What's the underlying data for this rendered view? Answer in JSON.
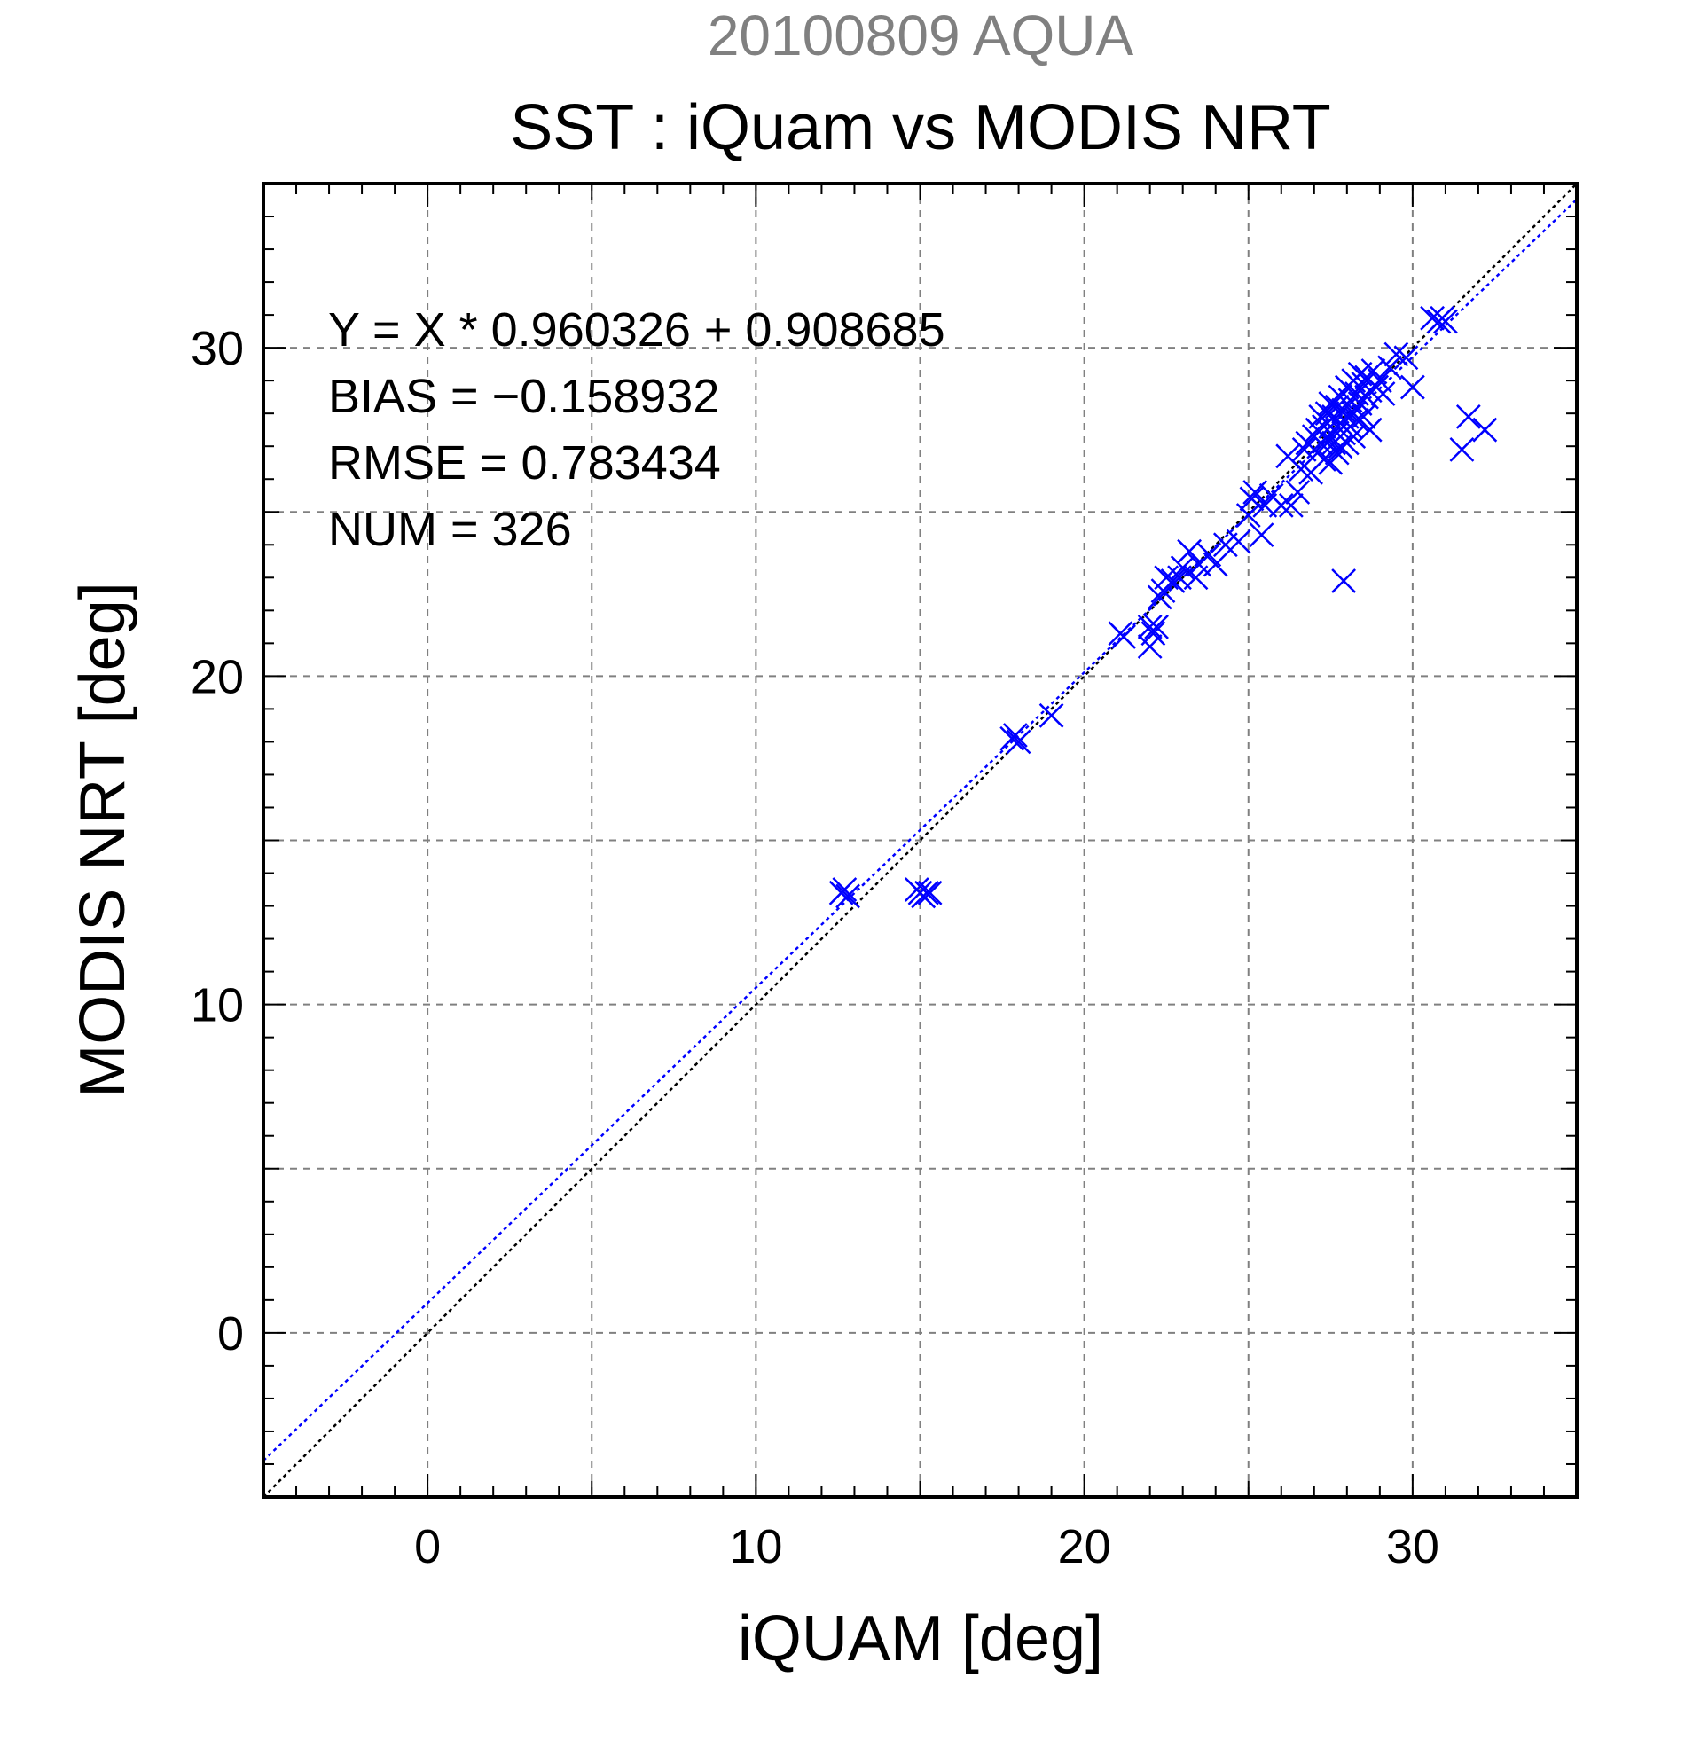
{
  "chart_data": {
    "type": "scatter",
    "suptitle": "20100809 AQUA",
    "title": "SST : iQuam vs MODIS NRT",
    "xlabel": "iQUAM [deg]",
    "ylabel": "MODIS NRT [deg]",
    "xlim": [
      -5,
      35
    ],
    "ylim": [
      -5,
      35
    ],
    "xticks": [
      0,
      10,
      20,
      30
    ],
    "yticks": [
      0,
      10,
      20,
      30
    ],
    "xtick_labels": [
      "0",
      "10",
      "20",
      "30"
    ],
    "ytick_labels": [
      "0",
      "10",
      "20",
      "30"
    ],
    "grid": true,
    "stats": {
      "fit_line": "Y = X * 0.960326 + 0.908685",
      "bias": "BIAS = −0.158932",
      "rmse": "RMSE = 0.783434",
      "num": "NUM = 326"
    },
    "fit": {
      "slope": 0.960326,
      "intercept": 0.908685
    },
    "colors": {
      "points": "#0000ff",
      "fit_line": "#0000ff",
      "identity_line": "#000000",
      "suptitle": "#808080",
      "grid": "#808080"
    },
    "series": [
      {
        "marker": "x",
        "points": [
          [
            12.6,
            13.4
          ],
          [
            12.8,
            13.3
          ],
          [
            12.7,
            13.5
          ],
          [
            15.0,
            13.4
          ],
          [
            15.2,
            13.4
          ],
          [
            15.1,
            13.3
          ],
          [
            15.3,
            13.4
          ],
          [
            14.9,
            13.5
          ],
          [
            17.8,
            18.1
          ],
          [
            18.0,
            18.0
          ],
          [
            17.9,
            18.2
          ],
          [
            19.0,
            18.8
          ],
          [
            21.1,
            21.3
          ],
          [
            21.2,
            21.2
          ],
          [
            22.0,
            21.5
          ],
          [
            22.1,
            21.3
          ],
          [
            22.2,
            21.5
          ],
          [
            22.0,
            20.9
          ],
          [
            22.3,
            22.4
          ],
          [
            22.4,
            22.6
          ],
          [
            22.5,
            23.0
          ],
          [
            22.7,
            22.9
          ],
          [
            22.9,
            23.0
          ],
          [
            23.0,
            23.3
          ],
          [
            23.2,
            23.8
          ],
          [
            23.4,
            23.0
          ],
          [
            23.5,
            23.4
          ],
          [
            23.8,
            23.7
          ],
          [
            24.0,
            23.4
          ],
          [
            24.3,
            24.0
          ],
          [
            24.7,
            24.1
          ],
          [
            25.0,
            24.9
          ],
          [
            25.1,
            25.4
          ],
          [
            25.2,
            25.6
          ],
          [
            25.4,
            24.3
          ],
          [
            25.5,
            25.2
          ],
          [
            25.7,
            25.5
          ],
          [
            26.0,
            25.2
          ],
          [
            26.2,
            26.7
          ],
          [
            26.3,
            25.2
          ],
          [
            26.5,
            25.6
          ],
          [
            26.6,
            26.3
          ],
          [
            26.7,
            26.9
          ],
          [
            26.8,
            27.1
          ],
          [
            26.9,
            26.2
          ],
          [
            27.0,
            27.3
          ],
          [
            27.1,
            27.5
          ],
          [
            27.1,
            26.8
          ],
          [
            27.2,
            27.9
          ],
          [
            27.2,
            27.1
          ],
          [
            27.3,
            27.6
          ],
          [
            27.3,
            26.6
          ],
          [
            27.4,
            28.0
          ],
          [
            27.4,
            27.2
          ],
          [
            27.5,
            28.3
          ],
          [
            27.5,
            27.6
          ],
          [
            27.5,
            26.5
          ],
          [
            27.6,
            27.9
          ],
          [
            27.6,
            27.1
          ],
          [
            27.7,
            28.2
          ],
          [
            27.7,
            27.4
          ],
          [
            27.7,
            26.8
          ],
          [
            27.8,
            28.5
          ],
          [
            27.8,
            27.7
          ],
          [
            27.8,
            27.0
          ],
          [
            27.9,
            28.1
          ],
          [
            27.9,
            27.4
          ],
          [
            28.0,
            28.8
          ],
          [
            28.0,
            27.9
          ],
          [
            28.0,
            27.1
          ],
          [
            28.1,
            28.4
          ],
          [
            28.1,
            27.6
          ],
          [
            28.2,
            29.0
          ],
          [
            28.2,
            28.0
          ],
          [
            28.2,
            27.3
          ],
          [
            28.3,
            28.6
          ],
          [
            28.3,
            27.8
          ],
          [
            28.4,
            29.2
          ],
          [
            28.4,
            28.3
          ],
          [
            28.5,
            28.9
          ],
          [
            28.5,
            27.9
          ],
          [
            28.6,
            29.1
          ],
          [
            28.6,
            28.5
          ],
          [
            28.7,
            28.7
          ],
          [
            28.7,
            27.5
          ],
          [
            28.8,
            29.3
          ],
          [
            28.9,
            28.8
          ],
          [
            29.0,
            29.0
          ],
          [
            29.1,
            28.6
          ],
          [
            29.3,
            29.4
          ],
          [
            29.5,
            29.8
          ],
          [
            29.8,
            29.7
          ],
          [
            30.0,
            28.8
          ],
          [
            30.6,
            30.9
          ],
          [
            30.8,
            30.8
          ],
          [
            30.9,
            30.9
          ],
          [
            31.0,
            30.8
          ],
          [
            31.5,
            26.9
          ],
          [
            31.7,
            27.9
          ],
          [
            32.2,
            27.5
          ],
          [
            27.9,
            22.9
          ]
        ]
      }
    ]
  }
}
